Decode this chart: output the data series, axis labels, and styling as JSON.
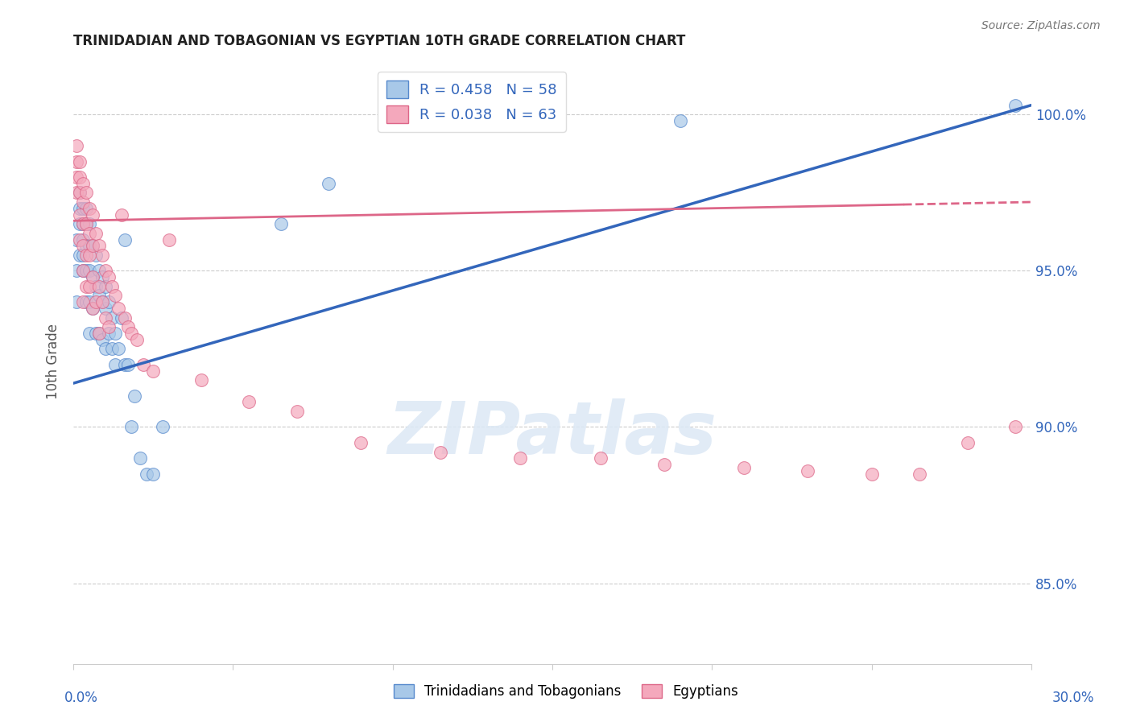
{
  "title": "TRINIDADIAN AND TOBAGONIAN VS EGYPTIAN 10TH GRADE CORRELATION CHART",
  "source": "Source: ZipAtlas.com",
  "ylabel": "10th Grade",
  "watermark": "ZIPatlas",
  "blue_label": "Trinidadians and Tobagonians",
  "pink_label": "Egyptians",
  "blue_R": 0.458,
  "blue_N": 58,
  "pink_R": 0.038,
  "pink_N": 63,
  "blue_color": "#A8C8E8",
  "pink_color": "#F4A8BC",
  "blue_edge_color": "#5588CC",
  "pink_edge_color": "#DD6688",
  "blue_line_color": "#3366BB",
  "pink_line_color": "#DD6688",
  "xmin": 0.0,
  "xmax": 0.3,
  "ymin": 0.824,
  "ymax": 1.018,
  "yticks": [
    0.85,
    0.9,
    0.95,
    1.0
  ],
  "ytick_labels": [
    "85.0%",
    "90.0%",
    "95.0%",
    "100.0%"
  ],
  "grid_color": "#CCCCCC",
  "background_color": "#FFFFFF",
  "blue_scatter_x": [
    0.001,
    0.001,
    0.001,
    0.002,
    0.002,
    0.002,
    0.002,
    0.003,
    0.003,
    0.003,
    0.003,
    0.003,
    0.004,
    0.004,
    0.004,
    0.004,
    0.004,
    0.005,
    0.005,
    0.005,
    0.005,
    0.005,
    0.006,
    0.006,
    0.006,
    0.007,
    0.007,
    0.007,
    0.008,
    0.008,
    0.008,
    0.009,
    0.009,
    0.009,
    0.01,
    0.01,
    0.01,
    0.011,
    0.011,
    0.012,
    0.012,
    0.013,
    0.013,
    0.014,
    0.015,
    0.016,
    0.016,
    0.017,
    0.018,
    0.019,
    0.021,
    0.023,
    0.025,
    0.028,
    0.065,
    0.08,
    0.19,
    0.295
  ],
  "blue_scatter_y": [
    0.96,
    0.95,
    0.94,
    0.975,
    0.97,
    0.965,
    0.955,
    0.97,
    0.965,
    0.96,
    0.955,
    0.95,
    0.97,
    0.965,
    0.958,
    0.95,
    0.94,
    0.965,
    0.958,
    0.95,
    0.94,
    0.93,
    0.958,
    0.948,
    0.938,
    0.955,
    0.945,
    0.93,
    0.95,
    0.942,
    0.93,
    0.948,
    0.94,
    0.928,
    0.945,
    0.938,
    0.925,
    0.94,
    0.93,
    0.935,
    0.925,
    0.93,
    0.92,
    0.925,
    0.935,
    0.96,
    0.92,
    0.92,
    0.9,
    0.91,
    0.89,
    0.885,
    0.885,
    0.9,
    0.965,
    0.978,
    0.998,
    1.003
  ],
  "pink_scatter_x": [
    0.001,
    0.001,
    0.001,
    0.001,
    0.002,
    0.002,
    0.002,
    0.002,
    0.002,
    0.003,
    0.003,
    0.003,
    0.003,
    0.003,
    0.003,
    0.004,
    0.004,
    0.004,
    0.004,
    0.005,
    0.005,
    0.005,
    0.005,
    0.006,
    0.006,
    0.006,
    0.006,
    0.007,
    0.007,
    0.008,
    0.008,
    0.008,
    0.009,
    0.009,
    0.01,
    0.01,
    0.011,
    0.011,
    0.012,
    0.013,
    0.014,
    0.015,
    0.016,
    0.017,
    0.018,
    0.02,
    0.022,
    0.025,
    0.03,
    0.04,
    0.055,
    0.07,
    0.09,
    0.115,
    0.14,
    0.165,
    0.185,
    0.21,
    0.23,
    0.25,
    0.265,
    0.28,
    0.295
  ],
  "pink_scatter_y": [
    0.99,
    0.985,
    0.98,
    0.975,
    0.985,
    0.98,
    0.975,
    0.968,
    0.96,
    0.978,
    0.972,
    0.965,
    0.958,
    0.95,
    0.94,
    0.975,
    0.965,
    0.955,
    0.945,
    0.97,
    0.962,
    0.955,
    0.945,
    0.968,
    0.958,
    0.948,
    0.938,
    0.962,
    0.94,
    0.958,
    0.945,
    0.93,
    0.955,
    0.94,
    0.95,
    0.935,
    0.948,
    0.932,
    0.945,
    0.942,
    0.938,
    0.968,
    0.935,
    0.932,
    0.93,
    0.928,
    0.92,
    0.918,
    0.96,
    0.915,
    0.908,
    0.905,
    0.895,
    0.892,
    0.89,
    0.89,
    0.888,
    0.887,
    0.886,
    0.885,
    0.885,
    0.895,
    0.9
  ]
}
